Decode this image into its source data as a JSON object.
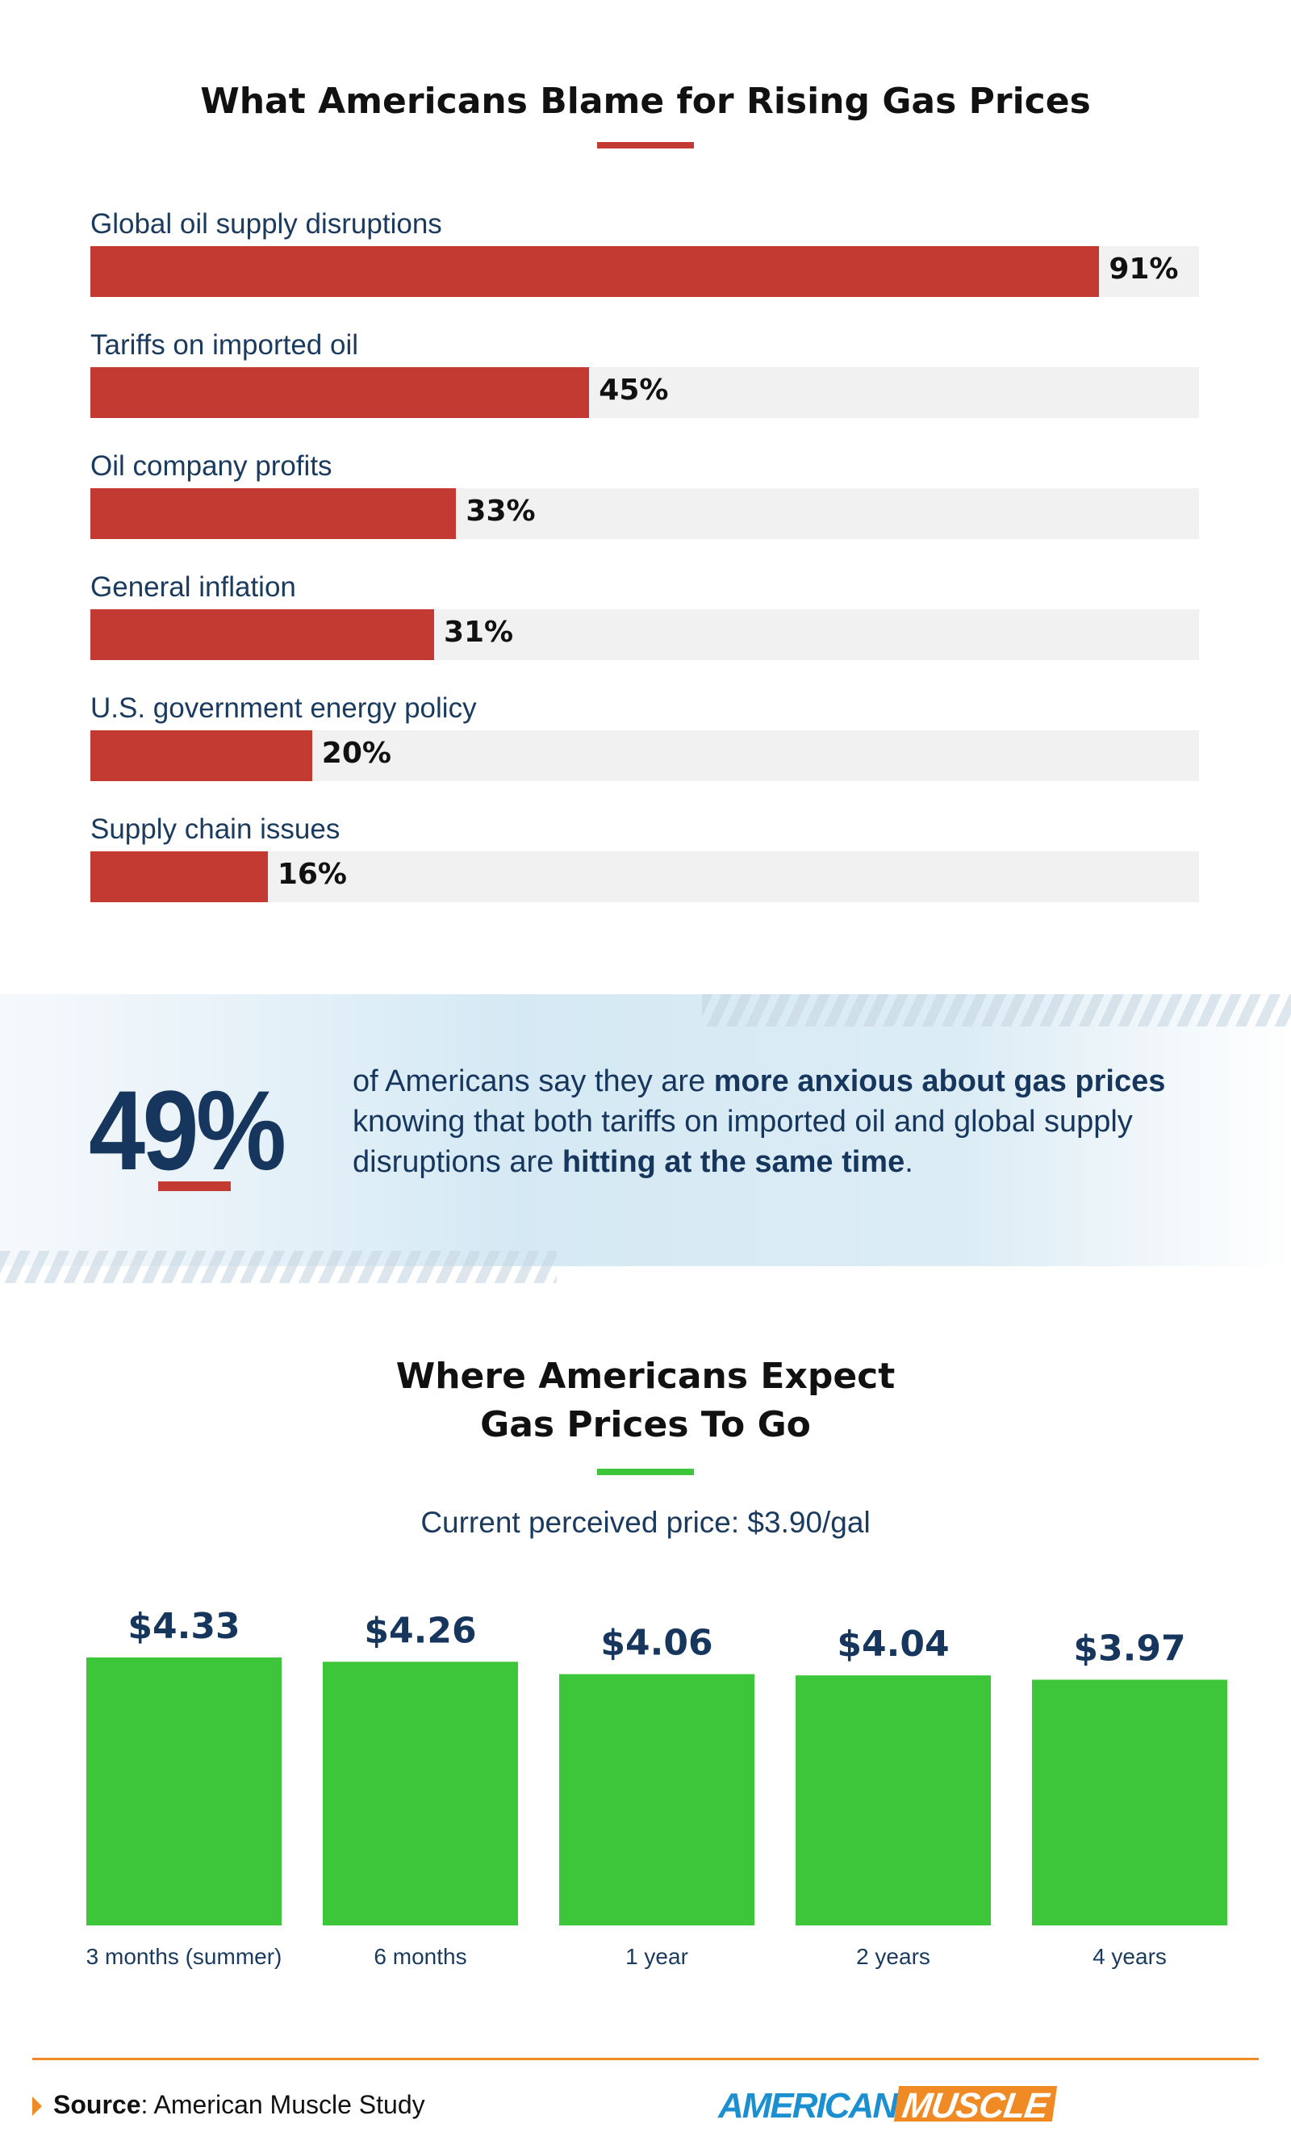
{
  "chart_data": [
    {
      "type": "bar",
      "orientation": "horizontal",
      "title": "What Americans Blame for Rising Gas Prices",
      "categories": [
        "Global oil supply disruptions",
        "Tariffs on imported oil",
        "Oil company profits",
        "General inflation",
        "U.S. government energy policy",
        "Supply chain issues"
      ],
      "values": [
        91,
        45,
        33,
        31,
        20,
        16
      ],
      "value_labels": [
        "91%",
        "45%",
        "33%",
        "31%",
        "20%",
        "16%"
      ],
      "xlim": [
        0,
        100
      ],
      "color": "#c33a33",
      "track_color": "#f1f1f1"
    },
    {
      "type": "bar",
      "title": "Where Americans Expect Gas Prices To Go",
      "title_lines": [
        "Where Americans Expect",
        "Gas Prices To Go"
      ],
      "subtitle": "Current perceived price: $3.90/gal",
      "categories": [
        "3 months (summer)",
        "6 months",
        "1 year",
        "2 years",
        "4 years"
      ],
      "values": [
        4.33,
        4.26,
        4.06,
        4.04,
        3.97
      ],
      "value_labels": [
        "$4.33",
        "$4.26",
        "$4.06",
        "$4.04",
        "$3.97"
      ],
      "ylim": [
        0,
        4.33
      ],
      "color": "#3ec63a"
    }
  ],
  "callout": {
    "big": "49%",
    "pre": "of Americans say they are ",
    "b1": "more anxious about gas prices",
    "mid": " knowing that both tariffs on imported oil and global supply disruptions are ",
    "b2": "hitting at the same time",
    "end": "."
  },
  "footer": {
    "source_label": "Source",
    "source_text": ": American Muscle Study",
    "logo_a": "AMERICAN",
    "logo_b": "MUSCLE"
  },
  "colors": {
    "red": "#c33a33",
    "green": "#3ec63a",
    "navy": "#17365d",
    "orange": "#f08a24",
    "blue": "#1b8fd0"
  }
}
